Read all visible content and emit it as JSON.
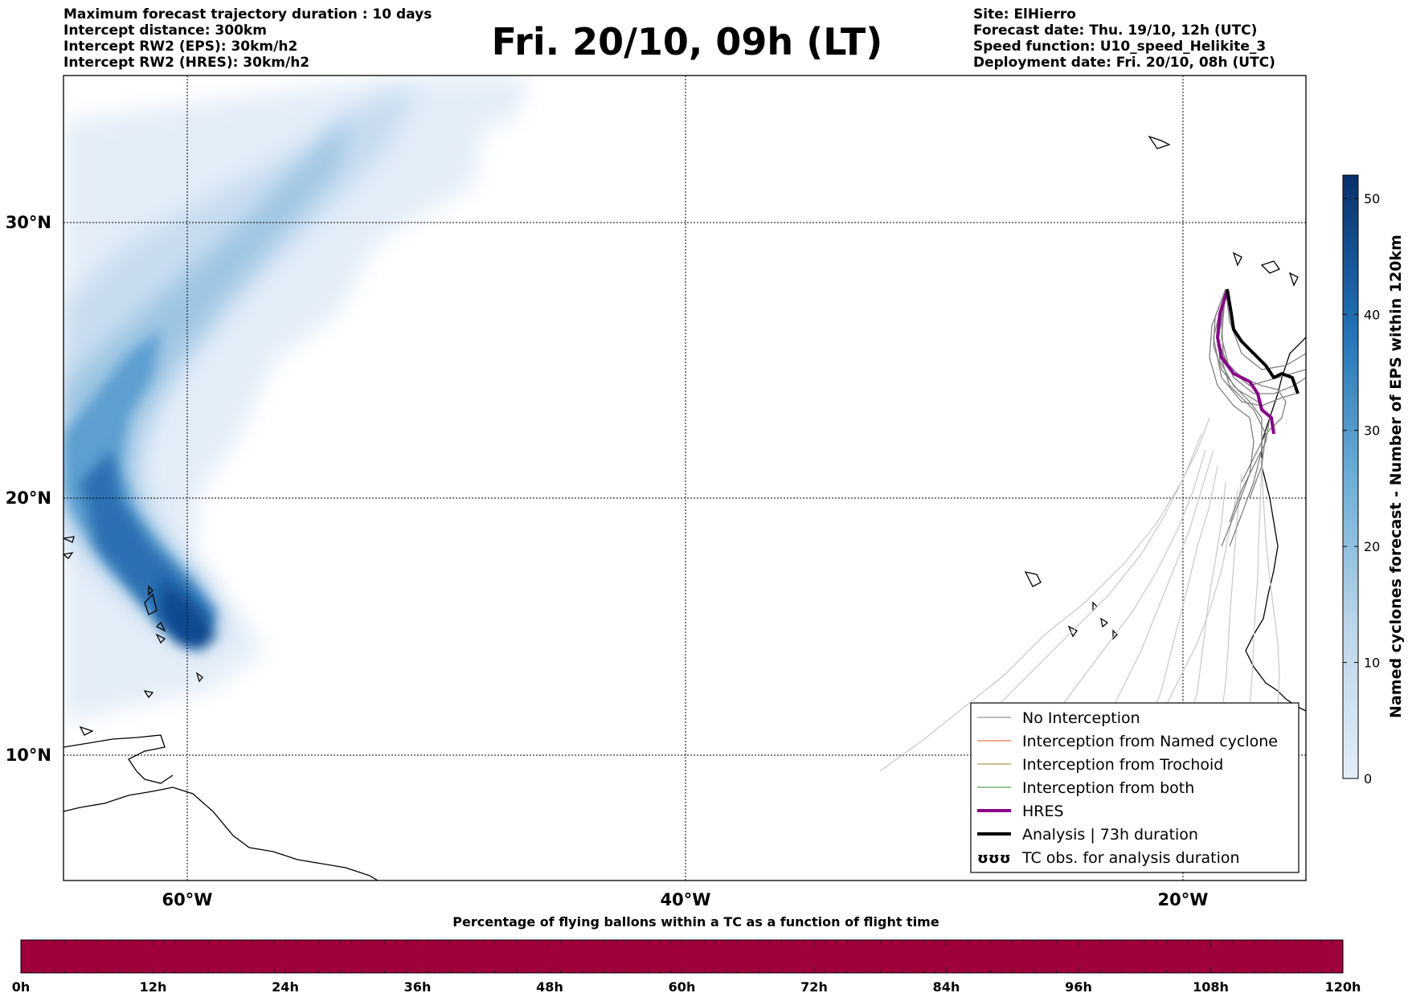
{
  "header": {
    "left_lines": [
      "Maximum forecast trajectory duration : 10 days",
      "Intercept distance: 300km",
      "Intercept RW2 (EPS):  30km/h2",
      "Intercept RW2 (HRES): 30km/h2"
    ],
    "title": "Fri. 20/10, 09h (LT)",
    "right_lines": [
      "Site: ElHierro",
      "Forecast date: Thu. 19/10, 12h (UTC)",
      "Speed function: U10_speed_Helikite_3",
      "Deployment date: Fri. 20/10, 08h (UTC)"
    ]
  },
  "map": {
    "lat_labels": [
      "30°N",
      "20°N",
      "10°N"
    ],
    "lon_labels": [
      "60°W",
      "40°W",
      "20°W"
    ]
  },
  "legend": {
    "items": [
      {
        "label": "No Interception",
        "color": "#777777",
        "width": 1
      },
      {
        "label": "Interception from Named cyclone",
        "color": "#e8541e",
        "width": 1
      },
      {
        "label": "Interception from Trochoid",
        "color": "#8a8a2a",
        "width": 1
      },
      {
        "label": "Interception from both",
        "color": "#2e8b2e",
        "width": 1
      },
      {
        "label": "HRES",
        "color": "#8b008b",
        "width": 4
      },
      {
        "label": "Analysis | 73h duration",
        "color": "#000000",
        "width": 4
      },
      {
        "label": "TC obs. for analysis duration",
        "symbol": "ʊʊʊ"
      }
    ]
  },
  "colorbar_right": {
    "label": "Named cyclones forecast - Number of EPS within 120km",
    "ticks": [
      "0",
      "10",
      "20",
      "30",
      "40",
      "50"
    ],
    "max": 52,
    "color_low": "#e4eef8",
    "color_high": "#08306b"
  },
  "colorbar_bottom": {
    "title": "Percentage of flying ballons within a TC as a function of flight time",
    "ticks": [
      "0h",
      "12h",
      "24h",
      "36h",
      "48h",
      "60h",
      "72h",
      "84h",
      "96h",
      "108h",
      "120h"
    ],
    "fill_color": "#a0003c",
    "fill_fraction": 1.0
  }
}
